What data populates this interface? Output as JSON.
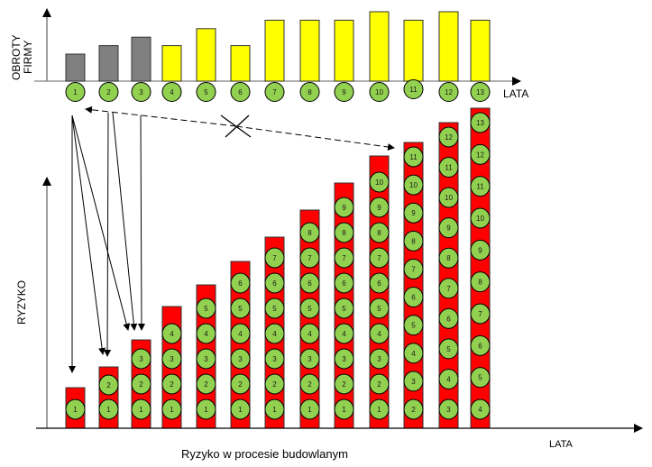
{
  "top_chart": {
    "y_label_line1": "OBROTY",
    "y_label_line2": "FIRMY",
    "x_label": "LATA",
    "years": [
      "1",
      "2",
      "3",
      "4",
      "5",
      "6",
      "7",
      "8",
      "9",
      "10",
      "11",
      "12",
      "13"
    ],
    "revenue_levels": [
      3,
      4,
      5,
      4,
      6,
      4,
      7,
      7,
      7,
      8,
      7,
      8,
      7
    ],
    "bar_colors": [
      "gray",
      "gray",
      "gray",
      "yellow",
      "yellow",
      "yellow",
      "yellow",
      "yellow",
      "yellow",
      "yellow",
      "yellow",
      "yellow",
      "yellow"
    ]
  },
  "bottom_chart": {
    "y_label": "RYZYKO",
    "x_label": "LATA",
    "caption": "Ryzyko w procesie budowlanym",
    "stacks": [
      [
        "1"
      ],
      [
        "1",
        "2"
      ],
      [
        "1",
        "2",
        "3"
      ],
      [
        "1",
        "2",
        "3",
        "4"
      ],
      [
        "1",
        "2",
        "3",
        "4",
        "5"
      ],
      [
        "1",
        "2",
        "3",
        "4",
        "5",
        "6"
      ],
      [
        "1",
        "2",
        "3",
        "4",
        "5",
        "6",
        "7"
      ],
      [
        "1",
        "2",
        "3",
        "4",
        "5",
        "6",
        "7",
        "8"
      ],
      [
        "1",
        "2",
        "3",
        "4",
        "5",
        "6",
        "7",
        "8",
        "9"
      ],
      [
        "1",
        "2",
        "3",
        "4",
        "5",
        "6",
        "7",
        "8",
        "9",
        "10"
      ],
      [
        "2",
        "3",
        "4",
        "5",
        "6",
        "7",
        "8",
        "9",
        "10",
        "11"
      ],
      [
        "3",
        "4",
        "5",
        "6",
        "7",
        "8",
        "9",
        "10",
        "11",
        "12"
      ],
      [
        "4",
        "5",
        "6",
        "7",
        "8",
        "9",
        "10",
        "11",
        "12",
        "13"
      ]
    ]
  },
  "colors": {
    "gray_bar": "#808080",
    "yellow_bar": "#ffff00",
    "risk_bar": "#ff0000",
    "year_circle": "#92d050",
    "axis": "#808080",
    "line": "#000000"
  },
  "connectors": {
    "solid_arrows": [
      {
        "from_year": "1",
        "to_bar": "1"
      },
      {
        "from_year": "1",
        "to_bar": "2"
      },
      {
        "from_year": "1",
        "to_bar": "3"
      },
      {
        "from_year": "2",
        "to_bar": "2"
      },
      {
        "from_year": "2",
        "to_bar": "3"
      },
      {
        "from_year": "3",
        "to_bar": "3"
      }
    ],
    "dashed_arrow": {
      "between_year": "1",
      "and_bar": "11",
      "crossed_out": true
    }
  }
}
